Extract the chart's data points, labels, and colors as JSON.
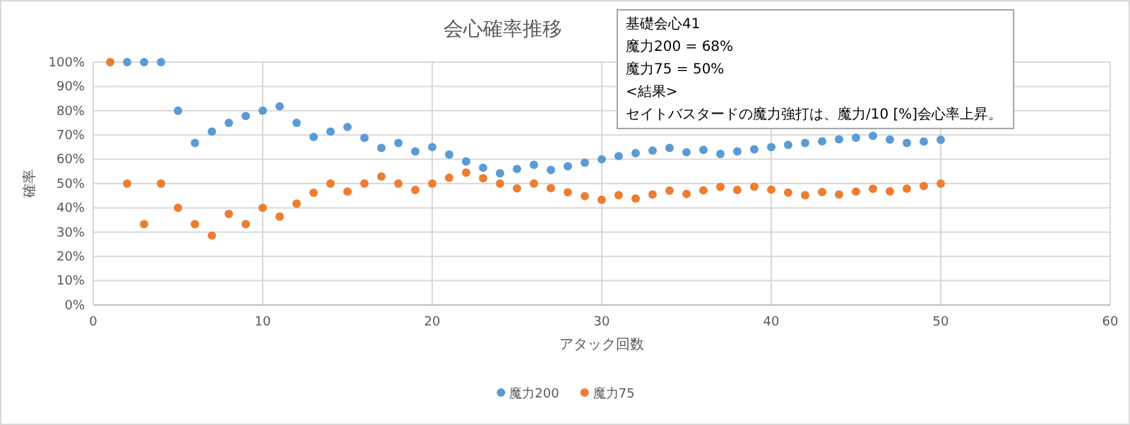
{
  "chart_data": {
    "type": "scatter",
    "title": "会心確率推移",
    "xlabel": "アタック回数",
    "ylabel": "確率",
    "annotations": [
      "基礎会心41",
      "魔力200 = 68%",
      "魔力75 = 50%",
      "<結果>",
      "セイトバスタードの魔力強打は、魔力/10 [%]会心率上昇。"
    ],
    "x": [
      1,
      2,
      3,
      4,
      5,
      6,
      7,
      8,
      9,
      10,
      11,
      12,
      13,
      14,
      15,
      16,
      17,
      18,
      19,
      20,
      21,
      22,
      23,
      24,
      25,
      26,
      27,
      28,
      29,
      30,
      31,
      32,
      33,
      34,
      35,
      36,
      37,
      38,
      39,
      40,
      41,
      42,
      43,
      44,
      45,
      46,
      47,
      48,
      49,
      50
    ],
    "series": [
      {
        "name": "魔力200",
        "color": "#5b9bd5",
        "values": [
          null,
          100,
          100,
          100,
          80,
          66.7,
          71.4,
          75,
          77.8,
          80,
          81.8,
          75,
          69.2,
          71.4,
          73.3,
          68.8,
          64.7,
          66.7,
          63.2,
          65,
          61.9,
          59.1,
          56.5,
          54.2,
          56,
          57.7,
          55.6,
          57.1,
          58.6,
          60,
          61.3,
          62.5,
          63.6,
          64.7,
          62.9,
          63.9,
          62.2,
          63.2,
          64.1,
          65,
          65.9,
          66.7,
          67.4,
          68.2,
          68.9,
          69.6,
          68.1,
          66.7,
          67.3,
          68
        ]
      },
      {
        "name": "魔力75",
        "color": "#ed7d31",
        "values": [
          100,
          50,
          33.3,
          50,
          40,
          33.3,
          28.6,
          37.5,
          33.3,
          40,
          36.4,
          41.7,
          46.2,
          50,
          46.7,
          50,
          52.9,
          50,
          47.4,
          50,
          52.4,
          54.5,
          52.2,
          50,
          48,
          50,
          48.1,
          46.4,
          44.8,
          43.3,
          45.2,
          43.8,
          45.5,
          47.1,
          45.7,
          47.2,
          48.6,
          47.4,
          48.7,
          47.5,
          46.3,
          45.2,
          46.5,
          45.5,
          46.7,
          47.8,
          46.8,
          47.9,
          49,
          50
        ]
      }
    ],
    "xlim": [
      0,
      60
    ],
    "xticks": [
      0,
      10,
      20,
      30,
      40,
      50,
      60
    ],
    "ylim": [
      0,
      100
    ],
    "yticks": [
      {
        "value": 0,
        "label": "0%"
      },
      {
        "value": 10,
        "label": "10%"
      },
      {
        "value": 20,
        "label": "20%"
      },
      {
        "value": 30,
        "label": "30%"
      },
      {
        "value": 40,
        "label": "40%"
      },
      {
        "value": 50,
        "label": "50%"
      },
      {
        "value": 60,
        "label": "60%"
      },
      {
        "value": 70,
        "label": "70%"
      },
      {
        "value": 80,
        "label": "80%"
      },
      {
        "value": 90,
        "label": "90%"
      },
      {
        "value": 100,
        "label": "100%"
      }
    ],
    "grid": true,
    "legend": "bottom",
    "marker": "circle"
  }
}
